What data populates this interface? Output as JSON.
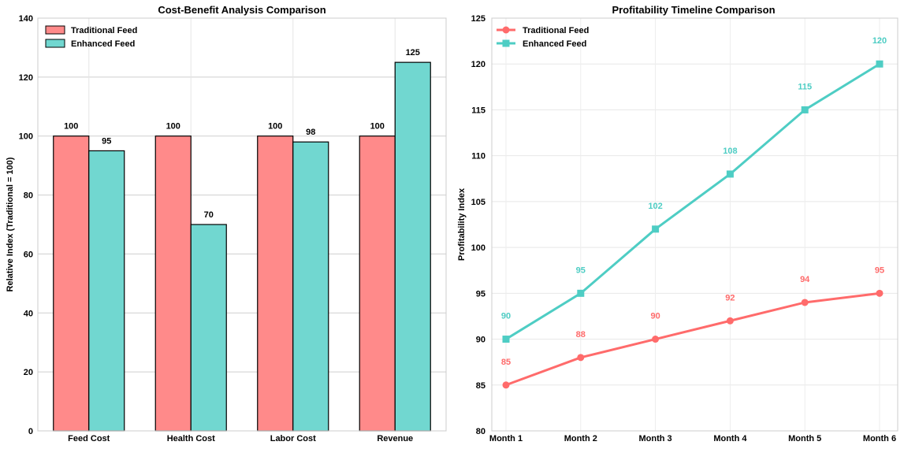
{
  "colors": {
    "traditional": "#FF6B6B",
    "enhanced": "#4ECDC4"
  },
  "chart_data": [
    {
      "type": "bar",
      "title": "Cost-Benefit Analysis Comparison",
      "xlabel": "",
      "ylabel": "Relative Index (Traditional = 100)",
      "ylim": [
        0,
        140
      ],
      "yticks": [
        "0",
        "20",
        "40",
        "60",
        "80",
        "100",
        "120",
        "140"
      ],
      "categories": [
        "Feed Cost",
        "Health Cost",
        "Labor Cost",
        "Revenue"
      ],
      "series": [
        {
          "name": "Traditional Feed",
          "values": [
            100,
            100,
            100,
            100
          ],
          "labels": [
            "100",
            "100",
            "100",
            "100"
          ]
        },
        {
          "name": "Enhanced Feed",
          "values": [
            95,
            70,
            98,
            125
          ],
          "labels": [
            "95",
            "70",
            "98",
            "125"
          ]
        }
      ],
      "grid": true,
      "legend": "top-left"
    },
    {
      "type": "line",
      "title": "Profitability Timeline Comparison",
      "xlabel": "",
      "ylabel": "Profitability Index",
      "ylim": [
        80,
        125
      ],
      "yticks": [
        "80",
        "85",
        "90",
        "95",
        "100",
        "105",
        "110",
        "115",
        "120",
        "125"
      ],
      "categories": [
        "Month 1",
        "Month 2",
        "Month 3",
        "Month 4",
        "Month 5",
        "Month 6"
      ],
      "series": [
        {
          "name": "Traditional Feed",
          "marker": "circle",
          "values": [
            85,
            88,
            90,
            92,
            94,
            95
          ],
          "labels": [
            "85",
            "88",
            "90",
            "92",
            "94",
            "95"
          ]
        },
        {
          "name": "Enhanced Feed",
          "marker": "square",
          "values": [
            90,
            95,
            102,
            108,
            115,
            120
          ],
          "labels": [
            "90",
            "95",
            "102",
            "108",
            "115",
            "120"
          ]
        }
      ],
      "grid": true,
      "legend": "top-left"
    }
  ]
}
